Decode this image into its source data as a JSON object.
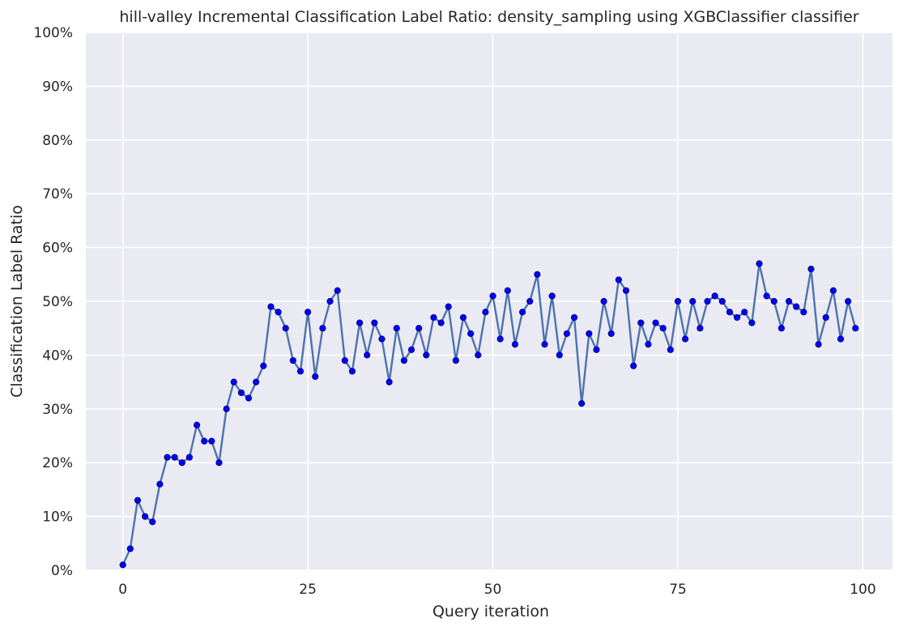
{
  "chart_data": {
    "type": "line",
    "title": "hill-valley Incremental Classification Label Ratio: density_sampling using XGBClassifier classifier",
    "xlabel": "Query iteration",
    "ylabel": "Classification Label Ratio",
    "xlim": [
      -5,
      104
    ],
    "ylim": [
      0,
      100
    ],
    "xticks": [
      0,
      25,
      50,
      75,
      100
    ],
    "xtick_labels": [
      "0",
      "25",
      "50",
      "75",
      "100"
    ],
    "yticks": [
      0,
      10,
      20,
      30,
      40,
      50,
      60,
      70,
      80,
      90,
      100
    ],
    "ytick_labels": [
      "0%",
      "10%",
      "20%",
      "30%",
      "40%",
      "50%",
      "60%",
      "70%",
      "80%",
      "90%",
      "100%"
    ],
    "grid": true,
    "background_color": "#eaeaf2",
    "grid_color": "#ffffff",
    "line_color": "#4c72b0",
    "marker_color": "#0000ff",
    "marker_edge_color": "#00008b",
    "x": [
      0,
      1,
      2,
      3,
      4,
      5,
      6,
      7,
      8,
      9,
      10,
      11,
      12,
      13,
      14,
      15,
      16,
      17,
      18,
      19,
      20,
      21,
      22,
      23,
      24,
      25,
      26,
      27,
      28,
      29,
      30,
      31,
      32,
      33,
      34,
      35,
      36,
      37,
      38,
      39,
      40,
      41,
      42,
      43,
      44,
      45,
      46,
      47,
      48,
      49,
      50,
      51,
      52,
      53,
      54,
      55,
      56,
      57,
      58,
      59,
      60,
      61,
      62,
      63,
      64,
      65,
      66,
      67,
      68,
      69,
      70,
      71,
      72,
      73,
      74,
      75,
      76,
      77,
      78,
      79,
      80,
      81,
      82,
      83,
      84,
      85,
      86,
      87,
      88,
      89,
      90,
      91,
      92,
      93,
      94,
      95,
      96,
      97,
      98,
      99
    ],
    "y": [
      1,
      4,
      13,
      10,
      9,
      16,
      21,
      21,
      20,
      21,
      27,
      24,
      24,
      20,
      30,
      35,
      33,
      32,
      35,
      38,
      49,
      48,
      45,
      39,
      37,
      48,
      36,
      45,
      50,
      52,
      39,
      37,
      46,
      40,
      46,
      43,
      35,
      45,
      39,
      41,
      45,
      40,
      47,
      46,
      49,
      39,
      47,
      44,
      40,
      48,
      51,
      43,
      52,
      42,
      48,
      50,
      55,
      42,
      51,
      40,
      44,
      47,
      31,
      44,
      41,
      50,
      44,
      54,
      52,
      38,
      46,
      42,
      46,
      45,
      41,
      50,
      43,
      50,
      45,
      50,
      51,
      50,
      48,
      47,
      48,
      46,
      57,
      51,
      50,
      45,
      50,
      49,
      48,
      56,
      42,
      47,
      52,
      43,
      50,
      45
    ]
  }
}
